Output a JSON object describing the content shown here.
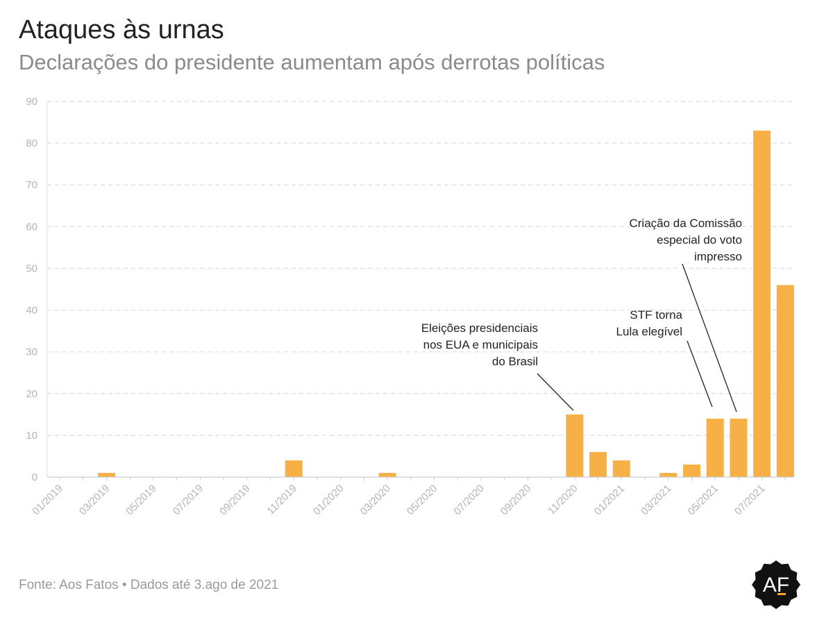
{
  "header": {
    "title": "Ataques às urnas",
    "subtitle": "Declarações do presidente aumentam após derrotas políticas"
  },
  "footer": {
    "source": "Fonte: Aos Fatos • Dados até 3.ago de 2021"
  },
  "logo": {
    "text": "AF",
    "icon": "aos-fatos-logo-icon",
    "bg_color": "#111111",
    "accent_color": "#f5a623"
  },
  "chart_data": {
    "type": "bar",
    "bar_color": "#f7b045",
    "grid": true,
    "ylim": [
      0,
      90
    ],
    "yticks": [
      0,
      10,
      20,
      30,
      40,
      50,
      60,
      70,
      80,
      90
    ],
    "categories": [
      "01/2019",
      "02/2019",
      "03/2019",
      "04/2019",
      "05/2019",
      "06/2019",
      "07/2019",
      "08/2019",
      "09/2019",
      "10/2019",
      "11/2019",
      "12/2019",
      "01/2020",
      "02/2020",
      "03/2020",
      "04/2020",
      "05/2020",
      "06/2020",
      "07/2020",
      "08/2020",
      "09/2020",
      "10/2020",
      "11/2020",
      "12/2020",
      "01/2021",
      "02/2021",
      "03/2021",
      "04/2021",
      "05/2021",
      "06/2021",
      "07/2021",
      "08/2021"
    ],
    "tick_labels": [
      "01/2019",
      "03/2019",
      "05/2019",
      "07/2019",
      "09/2019",
      "11/2019",
      "01/2020",
      "03/2020",
      "05/2020",
      "07/2020",
      "09/2020",
      "11/2020",
      "01/2021",
      "03/2021",
      "05/2021",
      "07/2021"
    ],
    "values": [
      0,
      0,
      1,
      0,
      0,
      0,
      0,
      0,
      0,
      0,
      4,
      0,
      0,
      0,
      1,
      0,
      0,
      0,
      0,
      0,
      0,
      0,
      15,
      6,
      4,
      0,
      1,
      3,
      14,
      14,
      83,
      46
    ],
    "annotations": [
      {
        "target": "11/2020",
        "lines": [
          "Eleições presidenciais",
          "nos EUA e municipais",
          "do Brasil"
        ]
      },
      {
        "target": "05/2021",
        "lines": [
          "STF torna",
          "Lula elegível"
        ]
      },
      {
        "target": "06/2021",
        "lines": [
          "Criação da Comissão",
          "especial do voto",
          "impresso"
        ]
      }
    ]
  }
}
